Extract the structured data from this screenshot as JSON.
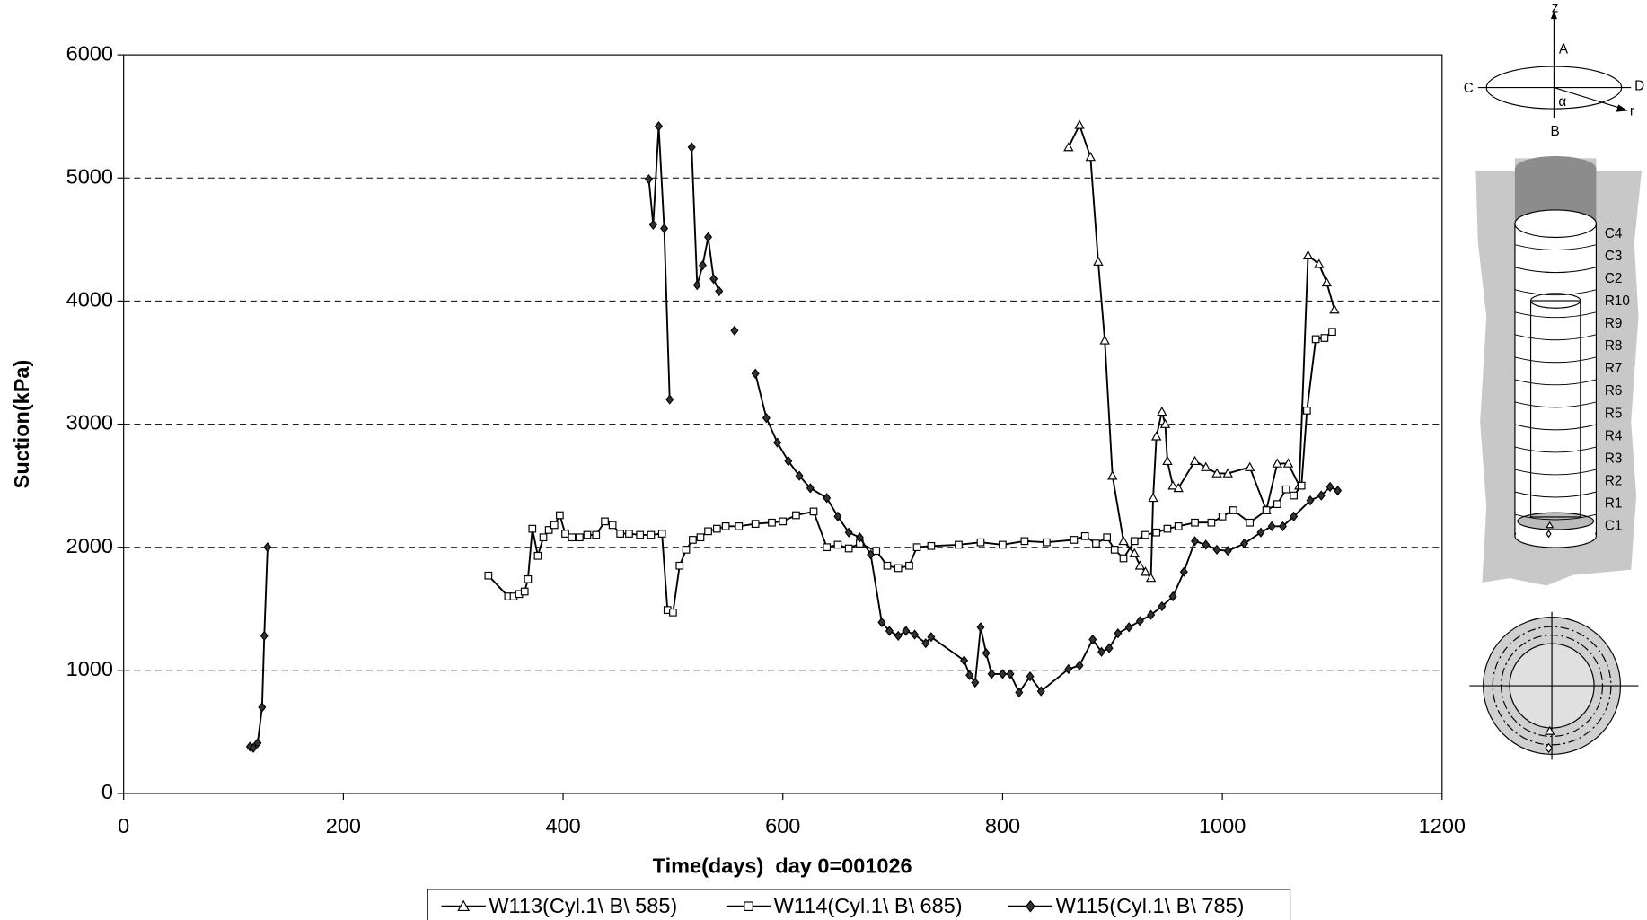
{
  "chart_data": {
    "type": "line",
    "xlabel": "Time(days)  day 0=001026",
    "ylabel": "Suction(kPa)",
    "xlim": [
      0,
      1200
    ],
    "xticks": [
      0,
      200,
      400,
      600,
      800,
      1000,
      1200
    ],
    "ylim": [
      0,
      6000
    ],
    "yticks": [
      0,
      1000,
      2000,
      3000,
      4000,
      5000,
      6000
    ],
    "grid": true,
    "legend": "bottom",
    "series": [
      {
        "name": "W113(Cyl.1\\ B\\ 585)",
        "color": "#000000",
        "marker": "triangle",
        "x": [
          860,
          870,
          880,
          887,
          893,
          900,
          910,
          920,
          925,
          930,
          935,
          937,
          940,
          945,
          948,
          950,
          955,
          960,
          975,
          985,
          995,
          1005,
          1025,
          1040,
          1050,
          1060,
          1070,
          1078,
          1088,
          1095,
          1102
        ],
        "values": [
          5250,
          5430,
          5170,
          4320,
          3680,
          2580,
          2050,
          1950,
          1850,
          1800,
          1750,
          2400,
          2900,
          3100,
          3000,
          2700,
          2500,
          2480,
          2700,
          2650,
          2600,
          2600,
          2650,
          2300,
          2680,
          2680,
          2500,
          4370,
          4300,
          4150,
          3930
        ]
      },
      {
        "name": "W114(Cyl.1\\ B\\ 685)",
        "color": "#000000",
        "marker": "square",
        "x": [
          332,
          350,
          355,
          360,
          365,
          368,
          372,
          377,
          382,
          387,
          392,
          397,
          402,
          408,
          415,
          422,
          430,
          438,
          445,
          452,
          460,
          470,
          480,
          490,
          495,
          500,
          506,
          512,
          518,
          525,
          532,
          540,
          548,
          560,
          575,
          590,
          600,
          612,
          628,
          640,
          650,
          660,
          670,
          685,
          695,
          705,
          715,
          722,
          735,
          760,
          780,
          800,
          820,
          840,
          865,
          875,
          885,
          895,
          902,
          910,
          920,
          930,
          940,
          950,
          960,
          975,
          990,
          1000,
          1010,
          1025,
          1040,
          1050,
          1058,
          1065,
          1072,
          1077,
          1085,
          1093,
          1100
        ],
        "values": [
          1770,
          1600,
          1600,
          1620,
          1640,
          1740,
          2150,
          1930,
          2080,
          2140,
          2180,
          2260,
          2110,
          2080,
          2080,
          2100,
          2100,
          2210,
          2180,
          2110,
          2110,
          2100,
          2100,
          2110,
          1490,
          1470,
          1850,
          1980,
          2060,
          2080,
          2130,
          2150,
          2170,
          2170,
          2190,
          2200,
          2210,
          2260,
          2290,
          2000,
          2020,
          1990,
          2030,
          1970,
          1850,
          1830,
          1850,
          2000,
          2010,
          2020,
          2040,
          2020,
          2050,
          2040,
          2060,
          2090,
          2030,
          2080,
          1980,
          1910,
          2050,
          2100,
          2120,
          2150,
          2170,
          2200,
          2200,
          2250,
          2300,
          2200,
          2300,
          2350,
          2470,
          2420,
          2500,
          3110,
          3690,
          3700,
          3750
        ]
      },
      {
        "name": "W115(Cyl.1\\ B\\ 785)",
        "color": "#000000",
        "marker": "diamond",
        "x": [
          115,
          118,
          122,
          126,
          128,
          131,
          null,
          478,
          482,
          487,
          492,
          497,
          null,
          517,
          522,
          527,
          532,
          537,
          542,
          null,
          556,
          null,
          575,
          585,
          595,
          605,
          615,
          625,
          640,
          650,
          660,
          670,
          680,
          690,
          697,
          705,
          712,
          720,
          730,
          735,
          765,
          770,
          775,
          780,
          785,
          790,
          800,
          807,
          815,
          825,
          835,
          860,
          870,
          882,
          890,
          897,
          905,
          915,
          925,
          935,
          945,
          955,
          965,
          975,
          985,
          995,
          1005,
          1020,
          1035,
          1045,
          1055,
          1065,
          1080,
          1090,
          1098,
          1105
        ],
        "values": [
          380,
          370,
          410,
          700,
          1280,
          2000,
          null,
          4990,
          4620,
          5420,
          4590,
          3200,
          null,
          5250,
          4130,
          4290,
          4520,
          4180,
          4080,
          null,
          3760,
          null,
          3410,
          3050,
          2850,
          2700,
          2580,
          2480,
          2400,
          2250,
          2120,
          2080,
          1940,
          1390,
          1320,
          1280,
          1320,
          1290,
          1220,
          1270,
          1080,
          960,
          900,
          1350,
          1140,
          970,
          970,
          970,
          820,
          950,
          830,
          1010,
          1040,
          1250,
          1150,
          1180,
          1300,
          1350,
          1400,
          1450,
          1520,
          1600,
          1800,
          2050,
          2020,
          1980,
          1970,
          2030,
          2120,
          2170,
          2170,
          2250,
          2380,
          2420,
          2490,
          2460
        ]
      }
    ]
  },
  "diagram": {
    "axis_labels": [
      "z",
      "A",
      "C",
      "D",
      "α",
      "r",
      "B"
    ],
    "ring_labels": [
      "C4",
      "C3",
      "C2",
      "R10",
      "R9",
      "R8",
      "R7",
      "R6",
      "R5",
      "R4",
      "R3",
      "R2",
      "R1",
      "C1"
    ]
  }
}
